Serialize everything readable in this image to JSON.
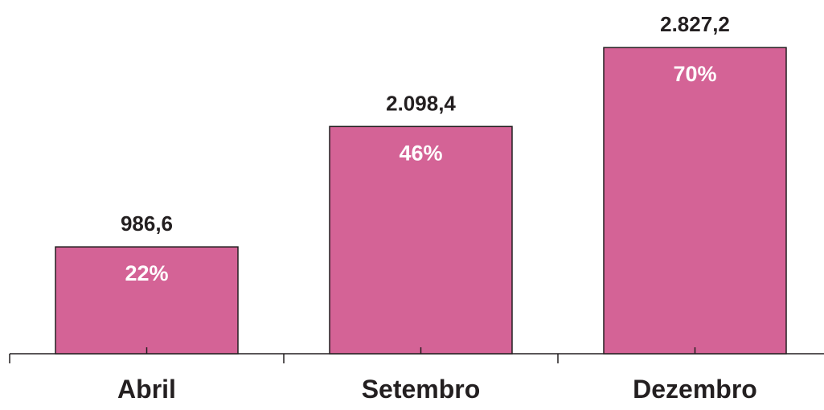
{
  "chart_data": {
    "type": "bar",
    "categories": [
      "Abril",
      "Setembro",
      "Dezembro"
    ],
    "values": [
      986.6,
      2098.4,
      2827.2
    ],
    "value_labels": [
      "986,6",
      "2.098,4",
      "2.827,2"
    ],
    "percent_labels": [
      "22%",
      "46%",
      "70%"
    ],
    "title": "",
    "xlabel": "",
    "ylabel": "",
    "ylim": [
      0,
      3500
    ],
    "grid": false,
    "legend": "none",
    "colors": {
      "bar_fill": "#d46396",
      "bar_stroke": "#231f20",
      "value_label": "#231f20",
      "percent_label": "#ffffff",
      "category_label": "#231f20",
      "axis": "#231f20"
    }
  }
}
